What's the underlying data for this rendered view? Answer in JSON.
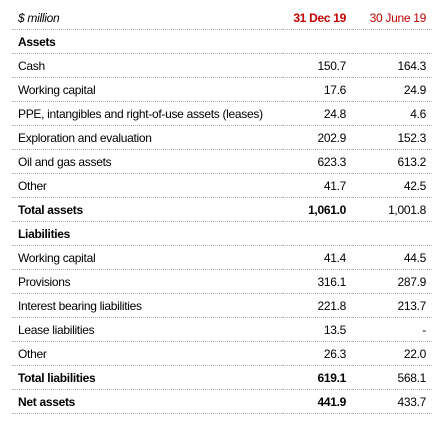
{
  "header": {
    "label": "$ million",
    "col1": "31 Dec 19",
    "col2": "30 June 19"
  },
  "rows": [
    [
      "Assets"
    ],
    [
      "Cash",
      "150.7",
      "164.3"
    ],
    [
      "Working capital",
      "17.6",
      "24.9"
    ],
    [
      "PPE, intangibles and right-of-use assets (leases)",
      "24.8",
      "4.6"
    ],
    [
      "Exploration and evaluation",
      "202.9",
      "152.3"
    ],
    [
      "Oil and gas assets",
      "623.3",
      "613.2"
    ],
    [
      "Other",
      "41.7",
      "42.5"
    ],
    [
      "Total assets",
      "1,061.0",
      "1,001.8"
    ],
    [
      "Liabilities"
    ],
    [
      "Working capital",
      "41.4",
      "44.5"
    ],
    [
      "Provisions",
      "316.1",
      "287.9"
    ],
    [
      "Interest bearing liabilities",
      "221.8",
      "213.7"
    ],
    [
      "Lease liabilities",
      "13.5",
      "-"
    ],
    [
      "Other",
      "26.3",
      "22.0"
    ],
    [
      "Total liabilities",
      "619.1",
      "568.1"
    ],
    [
      "Net assets",
      "441.9",
      "433.7"
    ]
  ]
}
